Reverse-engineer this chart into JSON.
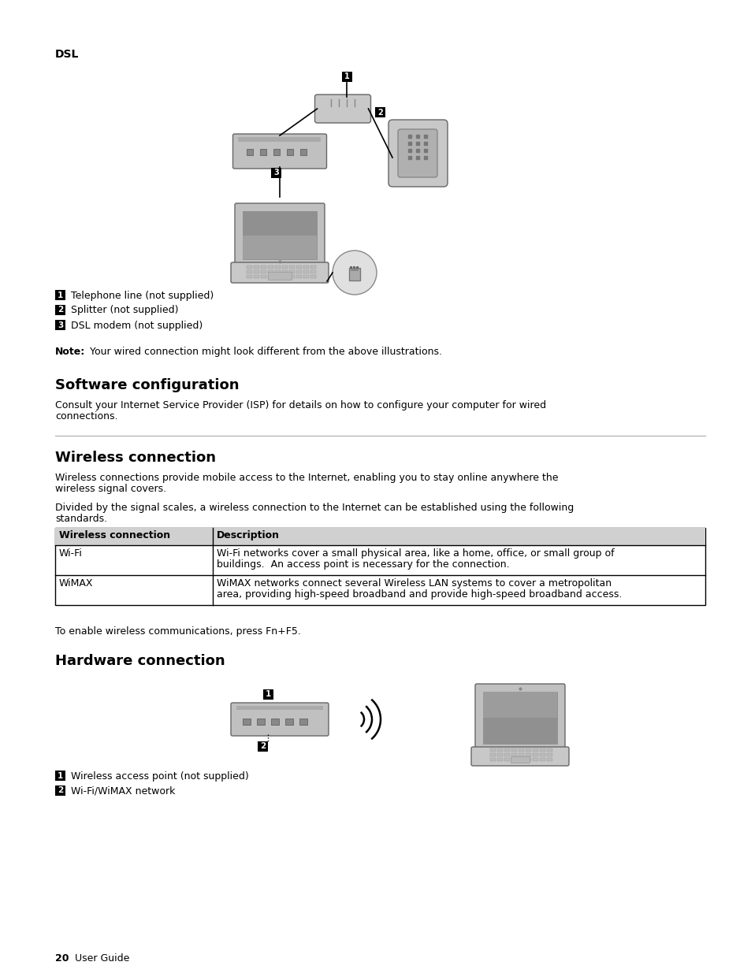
{
  "bg_color": "#ffffff",
  "dsl_label": "DSL",
  "legend1_text": "Telephone line (not supplied)",
  "legend2_text": "Splitter (not supplied)",
  "legend3_text": "DSL modem (not supplied)",
  "note_bold": "Note:",
  "note_text": " Your wired connection might look different from the above illustrations.",
  "section1_title": "Software configuration",
  "section1_para1": "Consult your Internet Service Provider (ISP) for details on how to configure your computer for wired",
  "section1_para2": "connections.",
  "section2_title": "Wireless connection",
  "section2_para1a": "Wireless connections provide mobile access to the Internet, enabling you to stay online anywhere the",
  "section2_para1b": "wireless signal covers.",
  "section2_para2a": "Divided by the signal scales, a wireless connection to the Internet can be established using the following",
  "section2_para2b": "standards.",
  "table_header_col1": "Wireless connection",
  "table_header_col2": "Description",
  "table_row1_col1": "Wi-Fi",
  "table_row1_col2a": "Wi-Fi networks cover a small physical area, like a home, office, or small group of",
  "table_row1_col2b": "buildings.  An access point is necessary for the connection.",
  "table_row2_col1": "WiMAX",
  "table_row2_col2a": "WiMAX networks connect several Wireless LAN systems to cover a metropolitan",
  "table_row2_col2b": "area, providing high-speed broadband and provide high-speed broadband access.",
  "wireless_enable_text": "To enable wireless communications, press Fn+F5.",
  "section3_title": "Hardware connection",
  "hw_legend1_text": "Wireless access point (not supplied)",
  "hw_legend2_text": "Wi-Fi/WiMAX network",
  "footer_page": "20",
  "footer_label": "User Guide"
}
